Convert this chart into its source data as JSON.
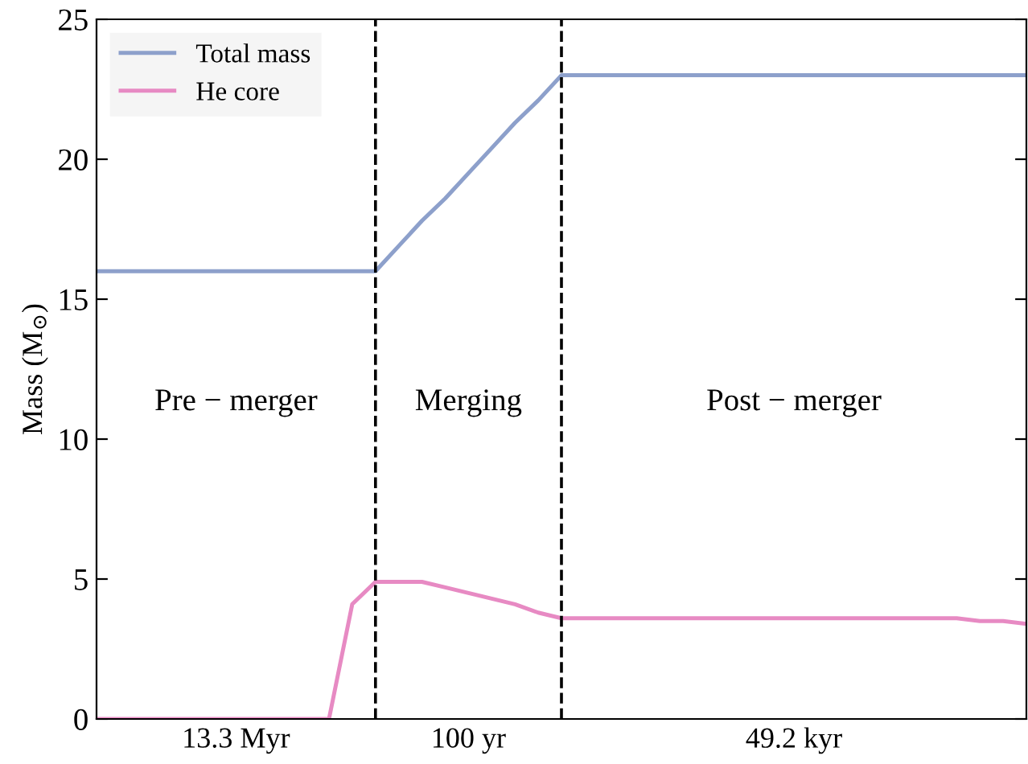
{
  "chart_data": {
    "type": "line",
    "ylabel": "Mass (M$_{⊙}$)",
    "categories": [
      null,
      null,
      null,
      null,
      null,
      null,
      null,
      null,
      null,
      null,
      null,
      null,
      null,
      null,
      null,
      null,
      null,
      null,
      null,
      null,
      null,
      null,
      null,
      null,
      null,
      null,
      null,
      null,
      null,
      null,
      null,
      null,
      null,
      null,
      null,
      null,
      null,
      null,
      null,
      null,
      null
    ],
    "series": [
      {
        "name": "Total mass",
        "color": "#8da0cb",
        "values": [
          16,
          16,
          16,
          16,
          16,
          16,
          16,
          16,
          16,
          16,
          16,
          16,
          16,
          16.9,
          17.8,
          18.6,
          19.5,
          20.4,
          21.3,
          22.1,
          23,
          23,
          23,
          23,
          23,
          23,
          23,
          23,
          23,
          23,
          23,
          23,
          23,
          23,
          23,
          23,
          23,
          23,
          23,
          23,
          23
        ]
      },
      {
        "name": "He core",
        "color": "#e78ac3",
        "values": [
          0,
          0,
          0,
          0,
          0,
          0,
          0,
          0,
          0,
          0,
          0,
          4.1,
          4.9,
          4.9,
          4.9,
          4.7,
          4.5,
          4.3,
          4.1,
          3.8,
          3.6,
          3.6,
          3.6,
          3.6,
          3.6,
          3.6,
          3.6,
          3.6,
          3.6,
          3.6,
          3.6,
          3.6,
          3.6,
          3.6,
          3.6,
          3.6,
          3.6,
          3.6,
          3.5,
          3.5,
          3.4
        ]
      }
    ],
    "ylim": [
      0,
      25
    ],
    "yticks": [
      0,
      5,
      10,
      15,
      20,
      25
    ],
    "annotations": [
      "Pre − merger",
      "Merging",
      "Post − merger",
      "13.3 Myr",
      "100 yr",
      "49.2 kyr"
    ],
    "legend": "top left",
    "grid": false,
    "line_style": "solid",
    "marker": "none"
  }
}
